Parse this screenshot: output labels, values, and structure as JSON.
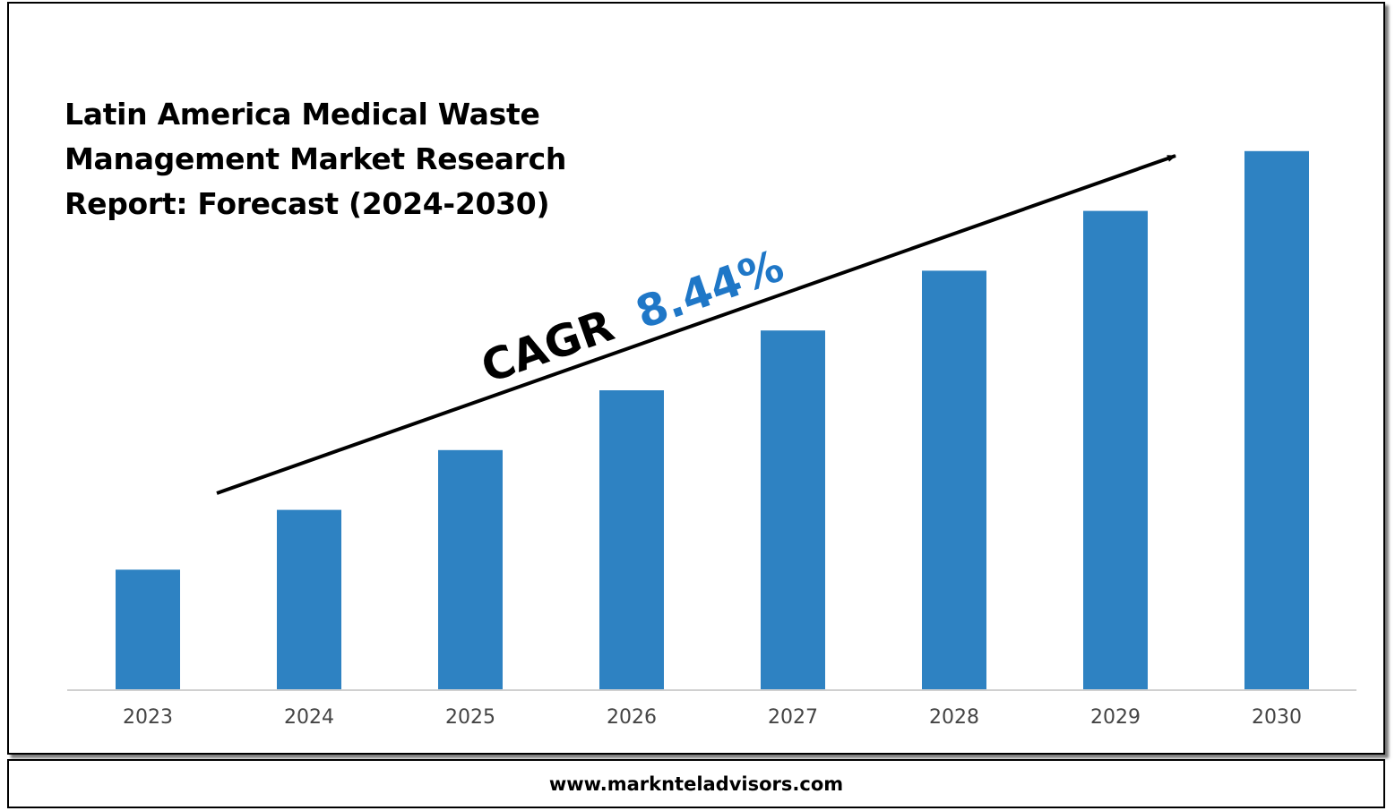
{
  "title_lines": [
    "Latin America Medical Waste",
    "Management Market Research",
    "Report: Forecast (2024-2030)"
  ],
  "cagr": {
    "label": "CAGR",
    "value": "8.44%",
    "value_color": "#1f77c7"
  },
  "footer": {
    "website": "www.marknteladvisors.com"
  },
  "colors": {
    "bar": "#2e82c2",
    "axis": "#d0d0d0",
    "tick_text": "#444444"
  },
  "chart_data": {
    "type": "bar",
    "title": "Latin America Medical Waste Management Market Research Report: Forecast (2024-2030)",
    "categories": [
      "2023",
      "2024",
      "2025",
      "2026",
      "2027",
      "2028",
      "2029",
      "2030"
    ],
    "values": [
      1,
      1.5,
      2,
      2.5,
      3,
      3.5,
      4,
      4.5
    ],
    "ylim": [
      0,
      5
    ],
    "xlabel": "",
    "ylabel": "",
    "grid": false,
    "legend": "none",
    "annotations": [
      "CAGR 8.44%"
    ]
  }
}
